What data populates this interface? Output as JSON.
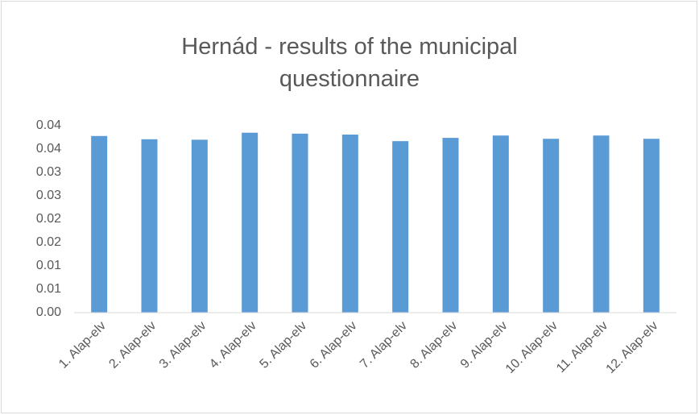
{
  "chart_data": {
    "type": "bar",
    "title": "Hernád - results of the municipal questionnaire",
    "categories": [
      "1. Alap-elv",
      "2. Alap-elv",
      "3. Alap-elv",
      "4. Alap-elv",
      "5. Alap-elv",
      "6. Alap-elv",
      "7. Alap-elv",
      "8. Alap-elv",
      "9. Alap-elv",
      "10. Alap-elv",
      "11. Alap-elv",
      "12. Alap-elv"
    ],
    "values": [
      0.0378,
      0.0371,
      0.037,
      0.0385,
      0.0383,
      0.0381,
      0.0367,
      0.0374,
      0.0379,
      0.0372,
      0.0379,
      0.0372
    ],
    "color": "#5b9bd5",
    "ylim": [
      0,
      0.04
    ],
    "yticks": [
      {
        "value": 0,
        "label": "0.00"
      },
      {
        "value": 0.005,
        "label": "0.01"
      },
      {
        "value": 0.01,
        "label": "0.01"
      },
      {
        "value": 0.015,
        "label": "0.02"
      },
      {
        "value": 0.02,
        "label": "0.02"
      },
      {
        "value": 0.025,
        "label": "0.03"
      },
      {
        "value": 0.03,
        "label": "0.03"
      },
      {
        "value": 0.035,
        "label": "0.04"
      },
      {
        "value": 0.04,
        "label": "0.04"
      }
    ],
    "grid": false
  }
}
